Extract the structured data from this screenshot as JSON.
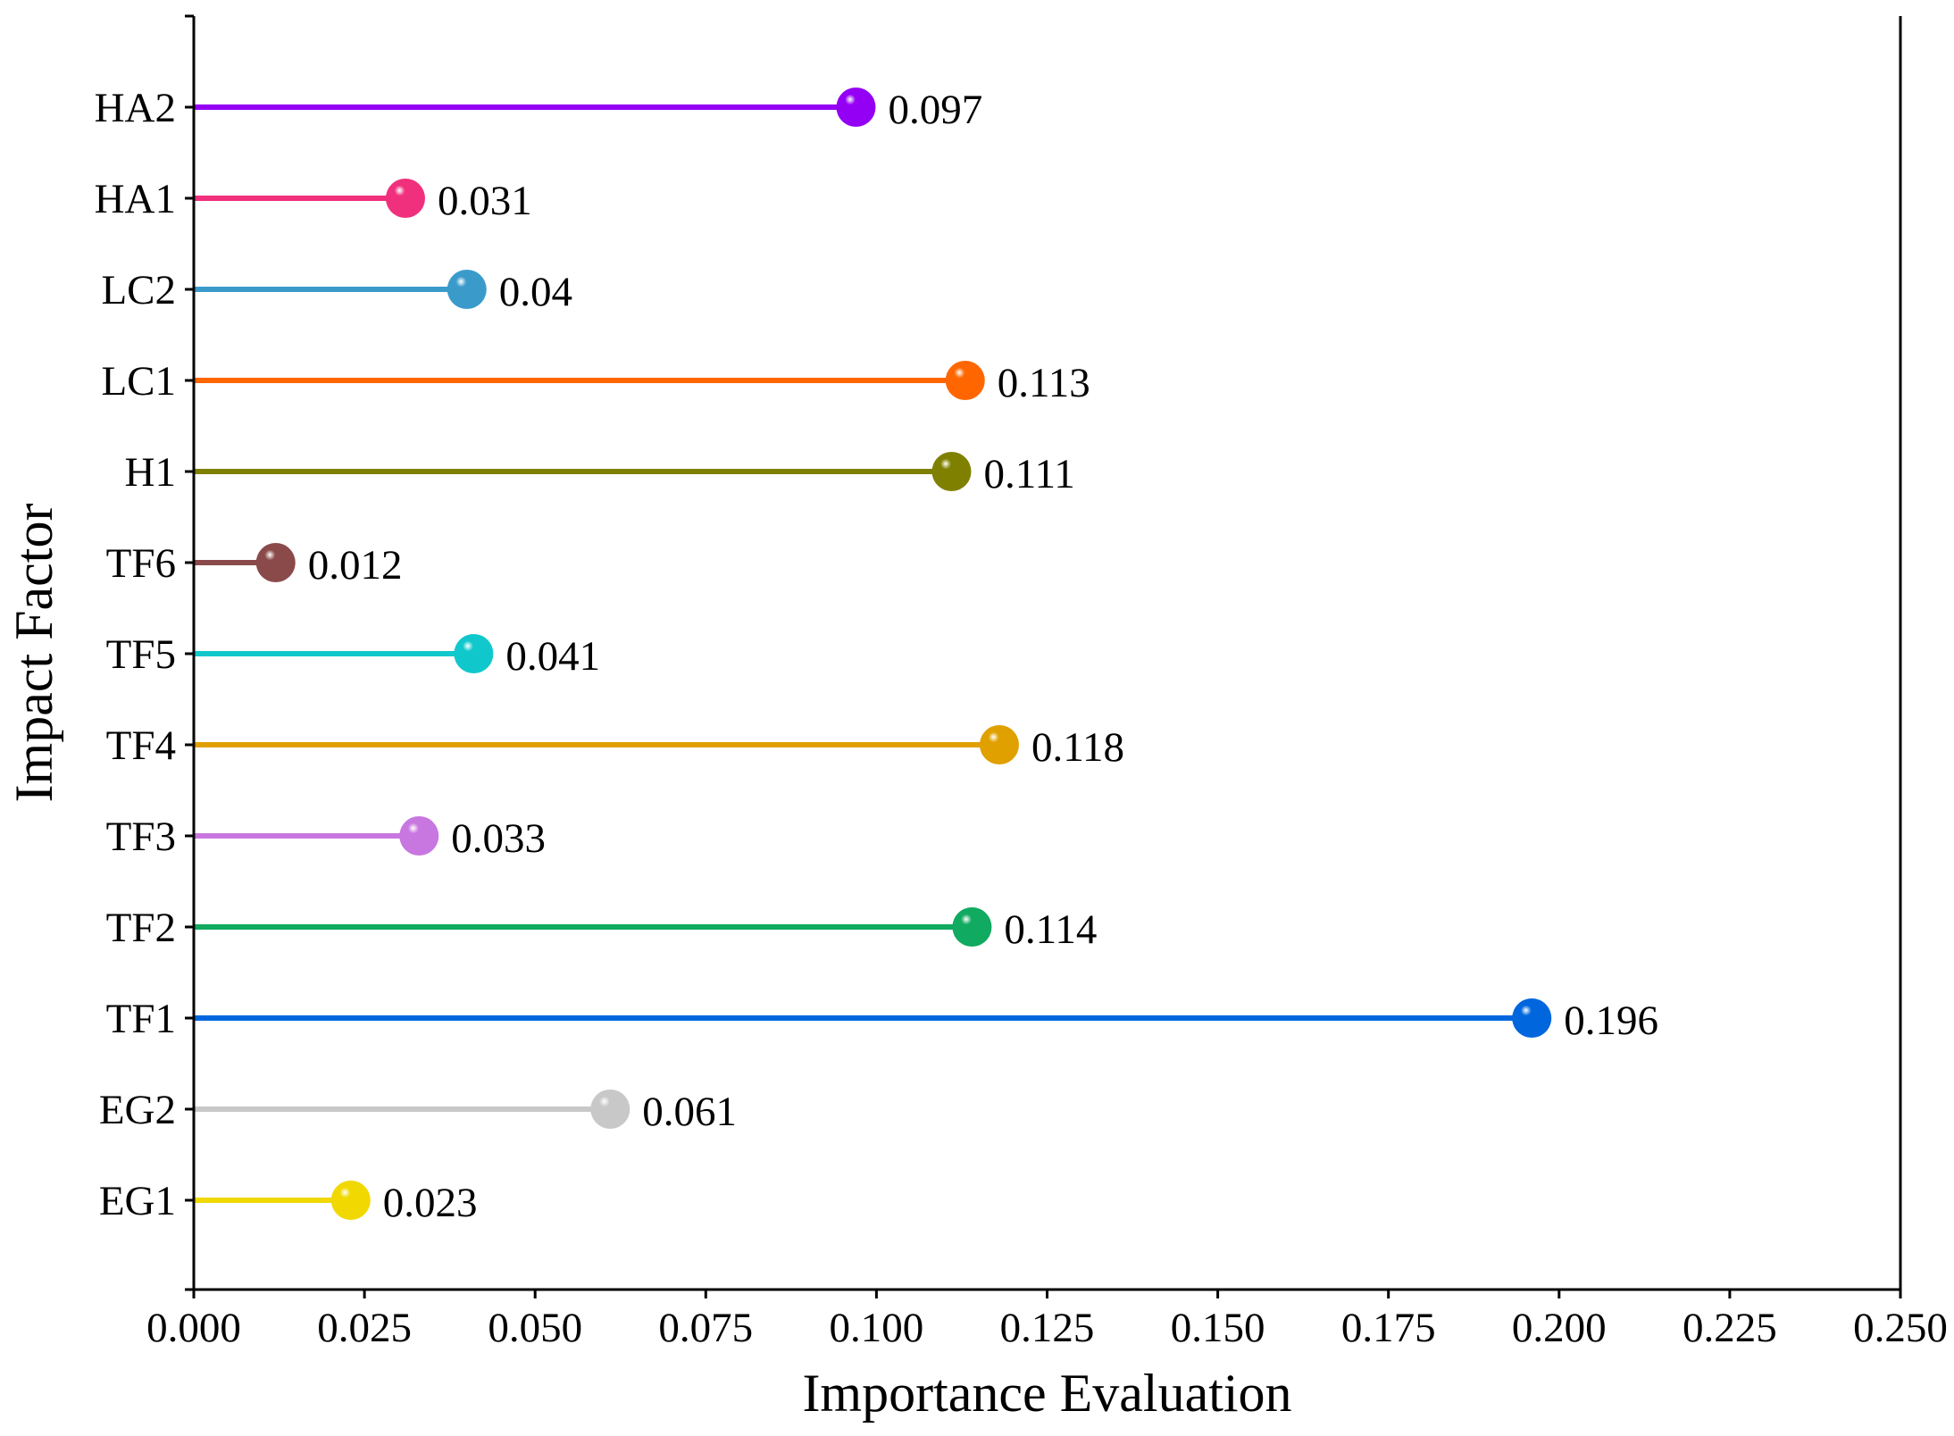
{
  "chart_data": {
    "type": "lollipop",
    "title": "",
    "xlabel": "Importance Evaluation",
    "ylabel": "Impact Factor",
    "xlim": [
      0,
      0.25
    ],
    "xticks": [
      0.0,
      0.025,
      0.05,
      0.075,
      0.1,
      0.125,
      0.15,
      0.175,
      0.2,
      0.225,
      0.25
    ],
    "xtick_labels": [
      "0.000",
      "0.025",
      "0.050",
      "0.075",
      "0.100",
      "0.125",
      "0.150",
      "0.175",
      "0.200",
      "0.225",
      "0.250"
    ],
    "grid": false,
    "legend": "none",
    "categories": [
      "HA2",
      "HA1",
      "LC2",
      "LC1",
      "H1",
      "TF6",
      "TF5",
      "TF4",
      "TF3",
      "TF2",
      "TF1",
      "EG2",
      "EG1"
    ],
    "values": [
      0.097,
      0.031,
      0.04,
      0.113,
      0.111,
      0.012,
      0.041,
      0.118,
      0.033,
      0.114,
      0.196,
      0.061,
      0.023
    ],
    "value_labels": [
      "0.097",
      "0.031",
      "0.04",
      "0.113",
      "0.111",
      "0.012",
      "0.041",
      "0.118",
      "0.033",
      "0.114",
      "0.196",
      "0.061",
      "0.023"
    ],
    "colors": [
      "#9400f3",
      "#f0307c",
      "#3a9bcb",
      "#ff6600",
      "#808000",
      "#8b4a4a",
      "#10c8cc",
      "#e0a000",
      "#c877e0",
      "#10aa60",
      "#0066dd",
      "#c8c8c8",
      "#f0d800"
    ]
  }
}
